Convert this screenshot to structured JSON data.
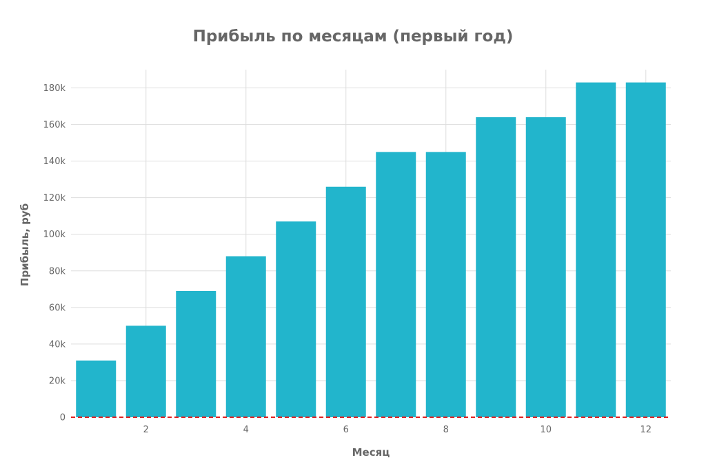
{
  "chart_data": {
    "type": "bar",
    "title": "Прибыль по месяцам (первый год)",
    "xlabel": "Месяц",
    "ylabel": "Прибыль, руб",
    "x": [
      1,
      2,
      3,
      4,
      5,
      6,
      7,
      8,
      9,
      10,
      11,
      12
    ],
    "values": [
      31000,
      50000,
      69000,
      88000,
      107000,
      126000,
      145000,
      145000,
      164000,
      164000,
      183000,
      183000
    ],
    "xlim": [
      0.5,
      12.5
    ],
    "ylim": [
      0,
      190000
    ],
    "x_ticks": [
      2,
      4,
      6,
      8,
      10,
      12
    ],
    "x_tick_labels": [
      "2",
      "4",
      "6",
      "8",
      "10",
      "12"
    ],
    "y_ticks": [
      0,
      20000,
      40000,
      60000,
      80000,
      100000,
      120000,
      140000,
      160000,
      180000
    ],
    "y_tick_labels": [
      "0",
      "20k",
      "40k",
      "60k",
      "80k",
      "100k",
      "120k",
      "140k",
      "160k",
      "180k"
    ],
    "reference_line": {
      "y": 0,
      "color": "#e02020",
      "style": "dashed"
    },
    "grid": true,
    "bar_color": "#22b5cc"
  }
}
